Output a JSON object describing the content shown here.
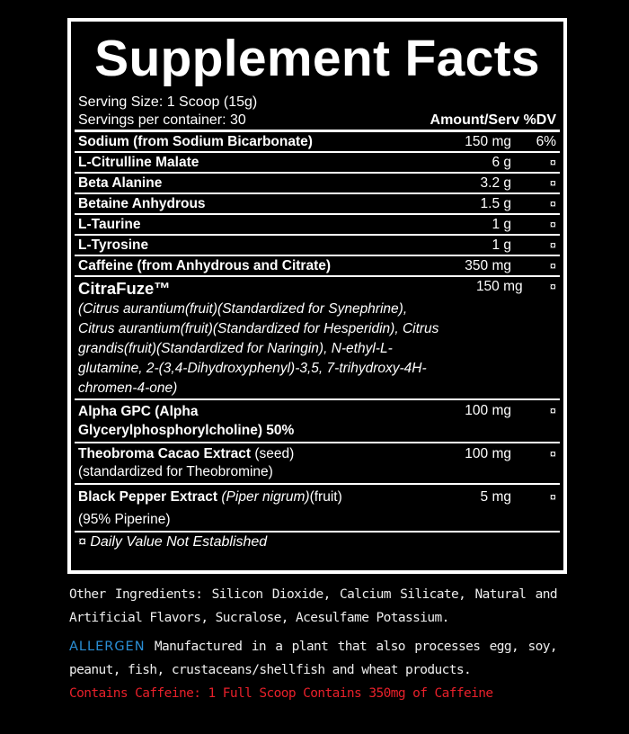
{
  "title": "Supplement Facts",
  "serving_size": "Serving Size: 1 Scoop (15g)",
  "servings": "Servings per container: 30",
  "col_amount": "Amount/Serv",
  "col_dv": "%DV",
  "rows": [
    {
      "name": "Sodium (from Sodium Bicarbonate)",
      "amount": "150 mg",
      "dv": "6%"
    },
    {
      "name": "L-Citrulline Malate",
      "amount": "6 g",
      "dv": "¤"
    },
    {
      "name": "Beta Alanine",
      "amount": "3.2 g",
      "dv": "¤"
    },
    {
      "name": "Betaine Anhydrous",
      "amount": "1.5 g",
      "dv": "¤"
    },
    {
      "name": "L-Taurine",
      "amount": "1 g",
      "dv": "¤"
    },
    {
      "name": "L-Tyrosine",
      "amount": "1 g",
      "dv": "¤"
    },
    {
      "name": "Caffeine (from Anhydrous and Citrate)",
      "amount": "350 mg",
      "dv": "¤"
    }
  ],
  "citrafuze": {
    "name": "CitraFuze™",
    "desc": "(Citrus aurantium(fruit)(Standardized for Synephrine), Citrus aurantium(fruit)(Standardized for Hesperidin), Citrus grandis(fruit)(Standardized for Naringin), N-ethyl-L-glutamine, 2-(3,4-Dihydroxyphenyl)-3,5, 7-trihydroxy-4H-chromen-4-one)",
    "amount": "150 mg",
    "dv": "¤"
  },
  "alpha": {
    "name": "Alpha GPC (Alpha Glycerylphosphorylcholine) 50%",
    "amount": "100 mg",
    "dv": "¤"
  },
  "theo": {
    "name": "Theobroma Cacao Extract",
    "part": " (seed)",
    "desc": "(standardized for Theobromine)",
    "amount": "100 mg",
    "dv": "¤"
  },
  "pepper": {
    "name": "Black Pepper Extract",
    "latin": " (Piper nigrum)",
    "part": "(fruit)",
    "desc": "(95% Piperine)",
    "amount": "5 mg",
    "dv": "¤"
  },
  "footnote": "¤ Daily Value Not Established",
  "other_ingredients": "Other Ingredients: Silicon Dioxide, Calcium Silicate, Natural and Artificial Flavors, Sucralose, Acesulfame Potassium.",
  "allergen_label": "ALLERGEN",
  "allergen_text": " Manufactured in a plant that also processes egg, soy, peanut, fish, crustaceans/shellfish and wheat products.",
  "caffeine_warning": "Contains Caffeine: 1 Full Scoop Contains 350mg of Caffeine",
  "colors": {
    "allergen": "#2a8fd6",
    "warning": "#e8202a"
  }
}
